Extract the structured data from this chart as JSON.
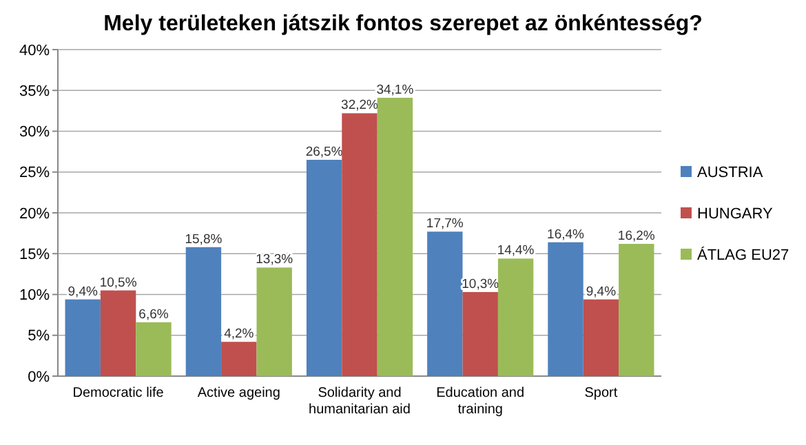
{
  "chart_data": {
    "type": "bar",
    "title": "Mely területeken játszik fontos szerepet az önkéntesség?",
    "categories": [
      "Democratic life",
      "Active ageing",
      "Solidarity and humanitarian aid",
      "Education and training",
      "Sport"
    ],
    "series": [
      {
        "name": "AUSTRIA",
        "color": "#4f81bd",
        "values": [
          9.4,
          15.8,
          26.5,
          17.7,
          16.4
        ],
        "value_labels": [
          "9,4%",
          "15,8%",
          "26,5%",
          "17,7%",
          "16,4%"
        ]
      },
      {
        "name": "HUNGARY",
        "color": "#c0504d",
        "values": [
          10.5,
          4.2,
          32.2,
          10.3,
          9.4
        ],
        "value_labels": [
          "10,5%",
          "4,2%",
          "32,2%",
          "10,3%",
          "9,4%"
        ]
      },
      {
        "name": "ÁTLAG EU27",
        "color": "#9bbb59",
        "values": [
          6.6,
          13.3,
          34.1,
          14.4,
          16.2
        ],
        "value_labels": [
          "6,6%",
          "13,3%",
          "34,1%",
          "14,4%",
          "16,2%"
        ]
      }
    ],
    "ylim": [
      0,
      40
    ],
    "yticks": [
      {
        "value": 0,
        "label": "0%"
      },
      {
        "value": 5,
        "label": "5%"
      },
      {
        "value": 10,
        "label": "10%"
      },
      {
        "value": 15,
        "label": "15%"
      },
      {
        "value": 20,
        "label": "20%"
      },
      {
        "value": 25,
        "label": "25%"
      },
      {
        "value": 30,
        "label": "30%"
      },
      {
        "value": 35,
        "label": "35%"
      },
      {
        "value": 40,
        "label": "40%"
      }
    ],
    "grid": true,
    "legend": "right"
  }
}
